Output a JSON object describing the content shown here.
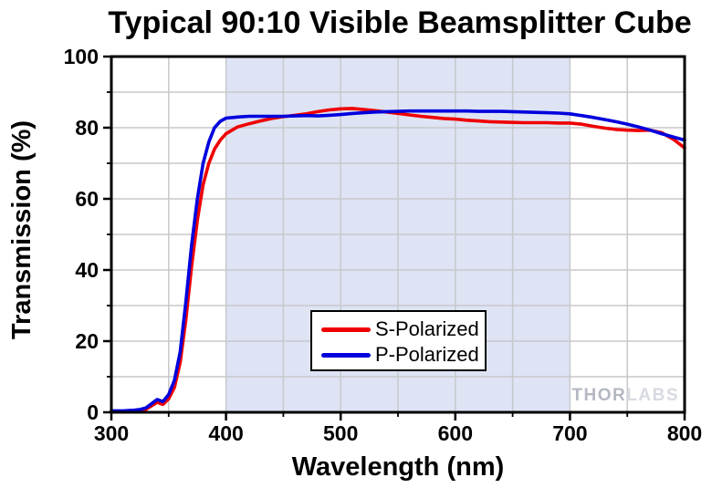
{
  "page": {
    "title": "Typical 90:10 Visible Beamsplitter Cube"
  },
  "axes": {
    "x_label": "Wavelength (nm)",
    "y_label": "Transmission (%)"
  },
  "legend": {
    "items": [
      {
        "label": "S-Polarized"
      },
      {
        "label": "P-Polarized"
      }
    ]
  },
  "watermark": {
    "part1": "THOR",
    "part2": "LABS"
  },
  "colors": {
    "s_polarized": "#EE0000",
    "p_polarized": "#0000DD",
    "band": "#DEE4F4",
    "grid": "#C8C8CC",
    "axis": "#000000",
    "watermark_thor": "#B4B8C2",
    "watermark_labs": "#D7DAE1",
    "background": "#FFFFFF"
  },
  "chart_data": {
    "type": "line",
    "title": "Typical 90:10 Visible Beamsplitter Cube",
    "xlabel": "Wavelength (nm)",
    "ylabel": "Transmission (%)",
    "xlim": [
      300,
      800
    ],
    "ylim": [
      0,
      100
    ],
    "x_major_ticks": [
      300,
      400,
      500,
      600,
      700,
      800
    ],
    "y_major_ticks": [
      0,
      20,
      40,
      60,
      80,
      100
    ],
    "x_minor_step": 50,
    "y_minor_step": 10,
    "grid": true,
    "shaded_band_x": [
      400,
      700
    ],
    "legend_position": "lower-center",
    "x": [
      300,
      305,
      310,
      315,
      320,
      325,
      330,
      335,
      340,
      345,
      350,
      355,
      360,
      365,
      370,
      375,
      380,
      385,
      390,
      395,
      400,
      410,
      420,
      430,
      440,
      450,
      460,
      470,
      480,
      490,
      500,
      510,
      520,
      530,
      540,
      550,
      560,
      570,
      580,
      590,
      600,
      610,
      620,
      630,
      640,
      650,
      660,
      670,
      680,
      690,
      700,
      710,
      720,
      730,
      740,
      750,
      760,
      770,
      780,
      790,
      800
    ],
    "series": [
      {
        "name": "S-Polarized",
        "color": "#EE0000",
        "values": [
          0.3,
          0.3,
          0.3,
          0.3,
          0.4,
          0.5,
          0.8,
          1.8,
          2.8,
          2.2,
          3.8,
          7,
          14,
          26,
          41,
          54,
          64,
          70,
          74,
          76.5,
          78.3,
          80.2,
          81.1,
          81.9,
          82.6,
          83.1,
          83.5,
          83.9,
          84.5,
          85.0,
          85.3,
          85.4,
          85.1,
          84.8,
          84.4,
          84.0,
          83.6,
          83.2,
          82.9,
          82.6,
          82.4,
          82.1,
          81.9,
          81.7,
          81.6,
          81.5,
          81.4,
          81.4,
          81.4,
          81.3,
          81.3,
          81.0,
          80.4,
          79.9,
          79.5,
          79.3,
          79.2,
          79.3,
          78.6,
          76.8,
          74.3
        ]
      },
      {
        "name": "P-Polarized",
        "color": "#0000DD",
        "values": [
          0.4,
          0.4,
          0.4,
          0.5,
          0.6,
          0.8,
          1.2,
          2.4,
          3.6,
          3.0,
          5.0,
          9,
          17,
          31,
          47,
          60,
          70,
          76,
          80,
          81.8,
          82.7,
          83.0,
          83.2,
          83.2,
          83.2,
          83.2,
          83.3,
          83.4,
          83.3,
          83.5,
          83.7,
          84.0,
          84.2,
          84.4,
          84.5,
          84.6,
          84.7,
          84.7,
          84.7,
          84.7,
          84.7,
          84.7,
          84.6,
          84.6,
          84.6,
          84.5,
          84.4,
          84.3,
          84.2,
          84.1,
          83.9,
          83.4,
          82.9,
          82.3,
          81.7,
          81.0,
          80.2,
          79.3,
          78.3,
          77.4,
          76.5
        ]
      }
    ]
  }
}
